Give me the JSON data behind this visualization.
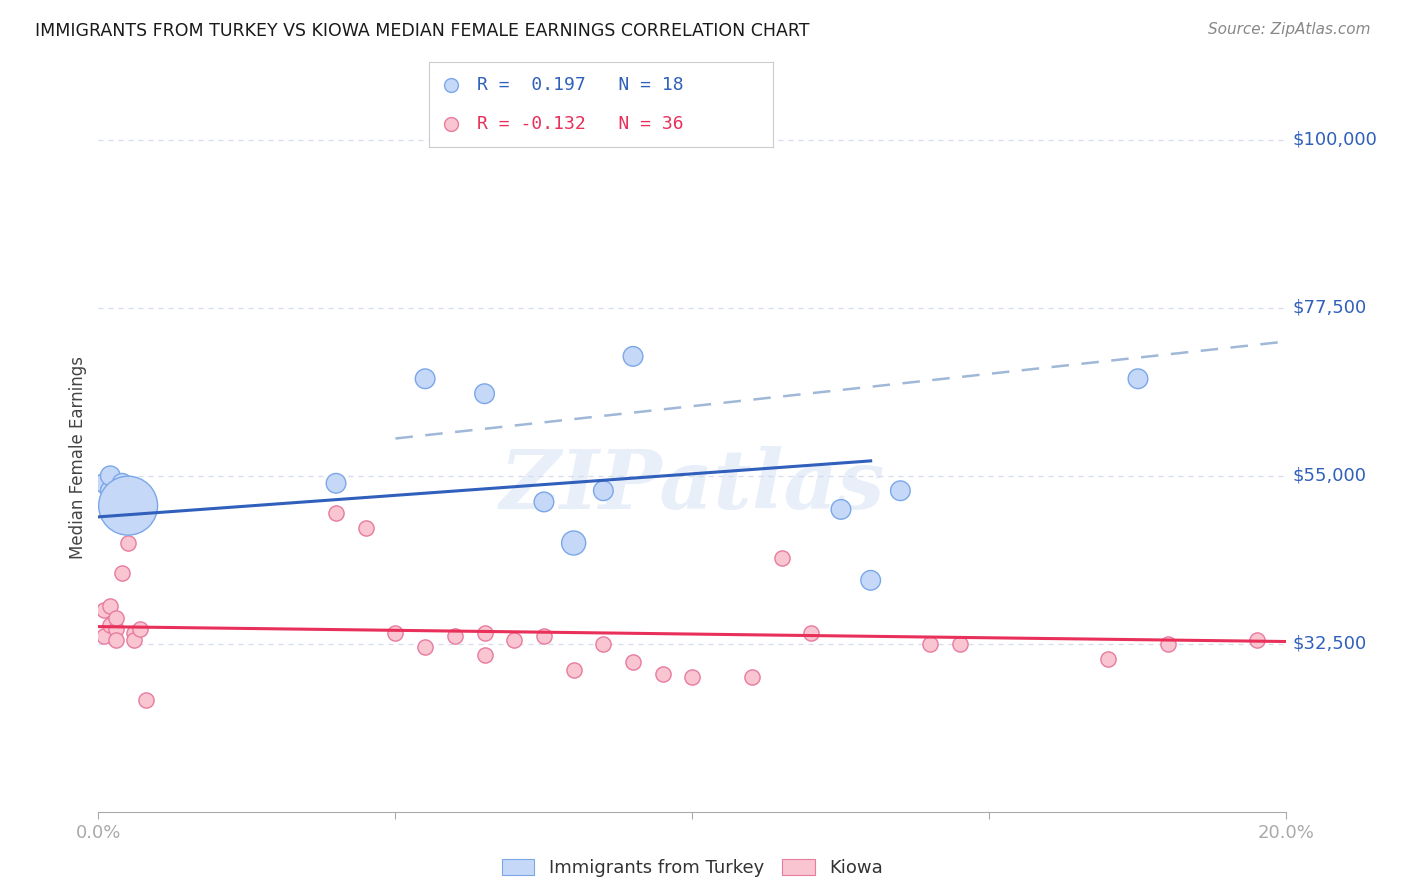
{
  "title": "IMMIGRANTS FROM TURKEY VS KIOWA MEDIAN FEMALE EARNINGS CORRELATION CHART",
  "source": "Source: ZipAtlas.com",
  "ylabel": "Median Female Earnings",
  "xmin": 0.0,
  "xmax": 0.2,
  "ymin": 10000,
  "ymax": 105000,
  "yticks": [
    32500,
    55000,
    77500,
    100000
  ],
  "ytick_labels": [
    "$32,500",
    "$55,000",
    "$77,500",
    "$100,000"
  ],
  "xticks": [
    0.0,
    0.05,
    0.1,
    0.15,
    0.2
  ],
  "xtick_labels": [
    "0.0%",
    "",
    "",
    "",
    "20.0%"
  ],
  "watermark": "ZIPatlas",
  "legend_r1": "R =  0.197   N = 18",
  "legend_r2": "R = -0.132   N = 36",
  "blue_edge_color": "#7ba7e8",
  "pink_edge_color": "#e87ba0",
  "blue_marker_color": "#c5d8f8",
  "pink_marker_color": "#f8c5d0",
  "blue_line_color": "#3060bb",
  "pink_line_color": "#e8305a",
  "dash_line_color": "#a0b8d8",
  "background_color": "#ffffff",
  "grid_color": "#d5dded",
  "turkey_x": [
    0.001,
    0.002,
    0.002,
    0.003,
    0.004,
    0.004,
    0.005,
    0.04,
    0.055,
    0.065,
    0.075,
    0.08,
    0.085,
    0.09,
    0.125,
    0.13,
    0.135,
    0.175
  ],
  "turkey_y": [
    54000,
    53000,
    55000,
    52000,
    54000,
    52000,
    51000,
    54000,
    68000,
    66000,
    51500,
    46000,
    53000,
    71000,
    50500,
    41000,
    53000,
    68000
  ],
  "turkey_sizes": [
    200,
    200,
    200,
    200,
    200,
    200,
    1800,
    200,
    200,
    200,
    200,
    300,
    200,
    200,
    200,
    200,
    200,
    200
  ],
  "kiowa_x": [
    0.001,
    0.001,
    0.002,
    0.002,
    0.003,
    0.003,
    0.003,
    0.004,
    0.004,
    0.005,
    0.006,
    0.006,
    0.007,
    0.008,
    0.04,
    0.045,
    0.05,
    0.055,
    0.06,
    0.065,
    0.065,
    0.07,
    0.075,
    0.08,
    0.085,
    0.09,
    0.095,
    0.1,
    0.11,
    0.115,
    0.12,
    0.14,
    0.145,
    0.17,
    0.18,
    0.195
  ],
  "kiowa_y": [
    37000,
    33500,
    35000,
    37500,
    34500,
    36000,
    33000,
    42000,
    50000,
    46000,
    34000,
    33000,
    34500,
    25000,
    50000,
    48000,
    34000,
    32000,
    33500,
    34000,
    31000,
    33000,
    33500,
    29000,
    32500,
    30000,
    28500,
    28000,
    28000,
    44000,
    34000,
    32500,
    32500,
    30500,
    32500,
    33000
  ],
  "blue_trend_x": [
    0.0,
    0.13
  ],
  "blue_trend_y": [
    49500,
    57000
  ],
  "pink_trend_x": [
    0.0,
    0.2
  ],
  "pink_trend_y": [
    34800,
    32800
  ],
  "dash_trend_x": [
    0.05,
    0.2
  ],
  "dash_trend_y": [
    60000,
    73000
  ]
}
